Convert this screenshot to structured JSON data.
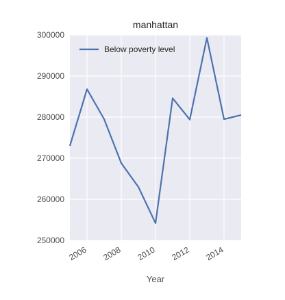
{
  "chart_data": {
    "type": "line",
    "title": "manhattan",
    "xlabel": "Year",
    "ylabel": "",
    "x": [
      2005,
      2006,
      2007,
      2008,
      2009,
      2010,
      2011,
      2012,
      2013,
      2014,
      2015
    ],
    "series": [
      {
        "name": "Below poverty level",
        "values": [
          273000,
          286800,
          279500,
          268800,
          263000,
          254200,
          284600,
          279400,
          299300,
          279500,
          280500
        ],
        "color": "#4c72b0"
      }
    ],
    "xlim": [
      2005,
      2015
    ],
    "ylim": [
      250000,
      300000
    ],
    "xticks": [
      2006,
      2008,
      2010,
      2012,
      2014
    ],
    "yticks": [
      250000,
      260000,
      270000,
      280000,
      290000,
      300000
    ],
    "xtick_labels": [
      "2006",
      "2008",
      "2010",
      "2012",
      "2014"
    ],
    "ytick_labels": [
      "250000",
      "260000",
      "270000",
      "280000",
      "290000",
      "300000"
    ],
    "grid": true,
    "legend_position": "upper-left",
    "background": "#eaeaf2",
    "grid_color": "#ffffff"
  }
}
